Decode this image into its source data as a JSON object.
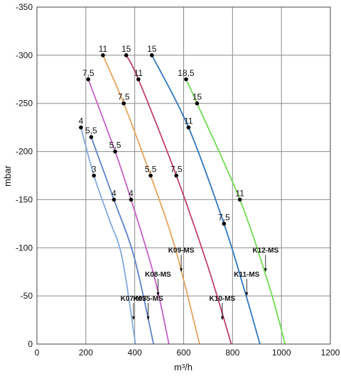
{
  "chart_data": {
    "type": "line",
    "title": "",
    "xlabel": "m³/h",
    "ylabel": "mbar",
    "xlim": [
      0,
      1200
    ],
    "ylim": [
      0,
      -350
    ],
    "x_ticks": [
      "0",
      "200",
      "400",
      "600",
      "800",
      "1000",
      "1200"
    ],
    "y_ticks": [
      "0",
      "-50",
      "-100",
      "-150",
      "-200",
      "-250",
      "-300",
      "-350"
    ],
    "grid": true,
    "series": [
      {
        "name": "K07-MS",
        "color": "#7fa9dc",
        "points": [
          [
            180,
            -225
          ],
          [
            233,
            -175
          ],
          [
            295,
            -130
          ],
          [
            348,
            -90
          ],
          [
            403,
            0
          ]
        ],
        "markers": [
          {
            "x": 180,
            "y": -225,
            "label": "4"
          },
          {
            "x": 233,
            "y": -175,
            "label": "3"
          }
        ],
        "tag": {
          "x": 395,
          "y": -25
        }
      },
      {
        "name": "K075-MS",
        "color": "#5a83c9",
        "points": [
          [
            222,
            -215
          ],
          [
            315,
            -150
          ],
          [
            398,
            -90
          ],
          [
            477,
            0
          ]
        ],
        "markers": [
          {
            "x": 222,
            "y": -215,
            "label": "5,5"
          },
          {
            "x": 315,
            "y": -150,
            "label": "4"
          }
        ],
        "tag": {
          "x": 455,
          "y": -25
        }
      },
      {
        "name": "K08-MS",
        "color": "#c55fc5",
        "points": [
          [
            210,
            -275
          ],
          [
            320,
            -200
          ],
          [
            385,
            -150
          ],
          [
            480,
            -70
          ],
          [
            540,
            0
          ]
        ],
        "markers": [
          {
            "x": 210,
            "y": -275,
            "label": "7,5"
          },
          {
            "x": 320,
            "y": -200,
            "label": "5,5"
          },
          {
            "x": 385,
            "y": -150,
            "label": "4"
          }
        ],
        "tag": {
          "x": 495,
          "y": -50
        }
      },
      {
        "name": "K09-MS",
        "color": "#e8a35a",
        "points": [
          [
            270,
            -300
          ],
          [
            355,
            -250
          ],
          [
            465,
            -175
          ],
          [
            565,
            -100
          ],
          [
            665,
            0
          ]
        ],
        "markers": [
          {
            "x": 270,
            "y": -300,
            "label": "11"
          },
          {
            "x": 355,
            "y": -250,
            "label": "7,5"
          },
          {
            "x": 465,
            "y": -175,
            "label": "5,5"
          }
        ],
        "tag": {
          "x": 590,
          "y": -75
        }
      },
      {
        "name": "K10-MS",
        "color": "#c2406a",
        "points": [
          [
            365,
            -300
          ],
          [
            415,
            -275
          ],
          [
            570,
            -175
          ],
          [
            700,
            -80
          ],
          [
            795,
            0
          ]
        ],
        "markers": [
          {
            "x": 365,
            "y": -300,
            "label": "15"
          },
          {
            "x": 415,
            "y": -275,
            "label": "11"
          },
          {
            "x": 570,
            "y": -175,
            "label": "7,5"
          }
        ],
        "tag": {
          "x": 758,
          "y": -25
        }
      },
      {
        "name": "K11-MS",
        "color": "#2f77c0",
        "points": [
          [
            470,
            -300
          ],
          [
            620,
            -225
          ],
          [
            765,
            -125
          ],
          [
            850,
            -55
          ],
          [
            912,
            0
          ]
        ],
        "markers": [
          {
            "x": 470,
            "y": -300,
            "label": "15"
          },
          {
            "x": 620,
            "y": -225,
            "label": "11"
          },
          {
            "x": 765,
            "y": -125,
            "label": "7,5"
          }
        ],
        "tag": {
          "x": 858,
          "y": -50
        }
      },
      {
        "name": "K12-MS",
        "color": "#6fdc4f",
        "points": [
          [
            610,
            -275
          ],
          [
            655,
            -250
          ],
          [
            830,
            -150
          ],
          [
            950,
            -60
          ],
          [
            1015,
            0
          ]
        ],
        "markers": [
          {
            "x": 610,
            "y": -275,
            "label": "18,5"
          },
          {
            "x": 655,
            "y": -250,
            "label": "15"
          },
          {
            "x": 830,
            "y": -150,
            "label": "11"
          }
        ],
        "tag": {
          "x": 935,
          "y": -75
        }
      }
    ]
  }
}
